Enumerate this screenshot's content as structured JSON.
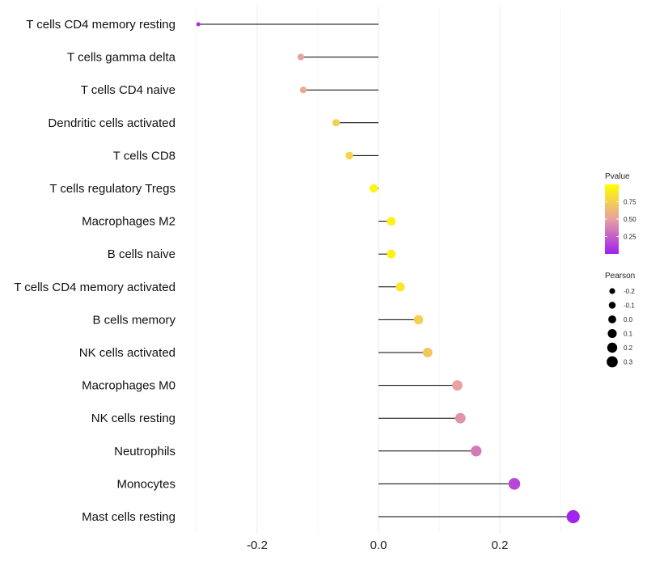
{
  "chart_data": {
    "type": "lollipop",
    "title": "",
    "xlabel": "",
    "ylabel": "",
    "xlim": [
      -0.33,
      0.33
    ],
    "x_ticks": [
      -0.2,
      0.0,
      0.2
    ],
    "x_tick_labels": [
      "-0.2",
      "0.0",
      "0.2"
    ],
    "categories": [
      "T cells CD4 memory resting",
      "T cells gamma delta",
      "T cells CD4 naive",
      "Dendritic cells activated",
      "T cells CD8",
      "T cells regulatory  Tregs ",
      "Macrophages M2",
      "B cells naive",
      "T cells CD4 memory activated",
      "B cells memory",
      "NK cells activated",
      "Macrophages M0",
      "NK cells resting",
      "Neutrophils",
      "Monocytes",
      "Mast cells resting"
    ],
    "pearson": [
      -0.297,
      -0.128,
      -0.124,
      -0.07,
      -0.048,
      -0.008,
      0.021,
      0.021,
      0.036,
      0.066,
      0.081,
      0.13,
      0.135,
      0.161,
      0.224,
      0.321
    ],
    "pvalue": [
      0.05,
      0.5,
      0.55,
      0.75,
      0.78,
      0.95,
      0.93,
      0.93,
      0.88,
      0.75,
      0.7,
      0.5,
      0.45,
      0.35,
      0.15,
      0.02
    ],
    "color_legend": {
      "title": "Pvalue",
      "ticks": [
        "0.75",
        "0.50",
        "0.25"
      ],
      "tick_values": [
        0.75,
        0.5,
        0.25
      ],
      "range": [
        0.0,
        1.0
      ],
      "low_color": "#a020f0",
      "mid_color": "#e8a0a0",
      "high_color": "#ffff00"
    },
    "size_legend": {
      "title": "Pearson",
      "labels": [
        "-0.2",
        "-0.1",
        "0.0",
        "0.1",
        "0.2",
        "0.3"
      ],
      "values": [
        -0.2,
        -0.1,
        0.0,
        0.1,
        0.2,
        0.3
      ]
    },
    "grid": true,
    "legend_position": "right"
  }
}
